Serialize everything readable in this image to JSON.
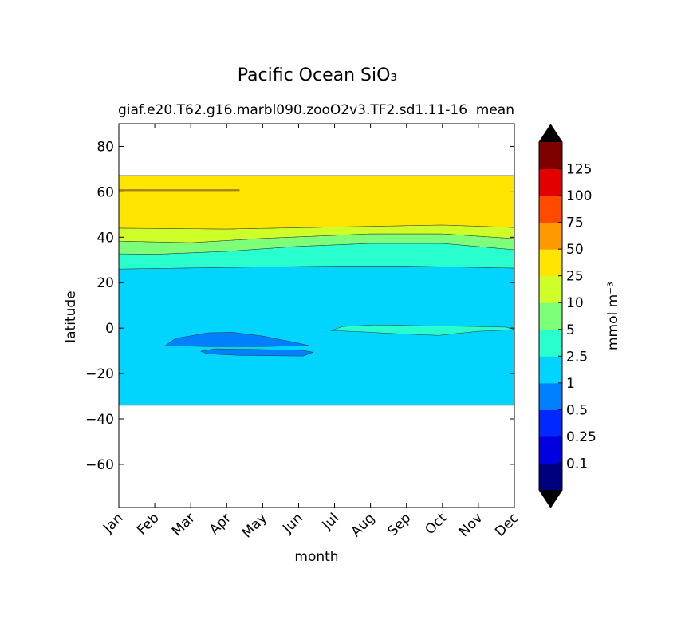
{
  "chart_data": {
    "type": "contourf",
    "title": "Pacific Ocean SiO₃",
    "subtitle_left": "giaf.e20.T62.g16.marbl090.zooO2v3.TF2.sd1.11-16",
    "subtitle_right": "mean",
    "x_label": "month",
    "y_label": "latitude",
    "categories": [
      "Jan",
      "Feb",
      "Mar",
      "Apr",
      "May",
      "Jun",
      "Jul",
      "Aug",
      "Sep",
      "Oct",
      "Nov",
      "Dec"
    ],
    "ylim": [
      -79,
      90
    ],
    "yticks": [
      {
        "value": -60,
        "label": "−60"
      },
      {
        "value": -40,
        "label": "−40"
      },
      {
        "value": -20,
        "label": "−20"
      },
      0,
      20,
      40,
      60,
      80
    ],
    "colorbar": {
      "label": "mmol m⁻³",
      "levels": [
        0.1,
        0.25,
        0.5,
        1,
        2.5,
        5,
        10,
        25,
        50,
        75,
        100,
        125
      ],
      "colors": [
        "#00007f",
        "#0000e0",
        "#0028ff",
        "#0080ff",
        "#00d4ff",
        "#29ffce",
        "#7dff7a",
        "#ceff29",
        "#ffe500",
        "#ff9900",
        "#ff4a00",
        "#e30000",
        "#800000"
      ],
      "extend_color": "#000000"
    },
    "regions": [
      {
        "range": [
          1,
          2.5
        ],
        "x": [
          0,
          11,
          11,
          8,
          6,
          3,
          0
        ],
        "y": [
          -34,
          -34,
          26.4,
          27.3,
          27.3,
          26.7,
          26
        ]
      },
      {
        "range": [
          2.5,
          5
        ],
        "x": [
          0,
          3,
          6,
          8,
          11,
          11,
          9,
          7,
          5,
          3,
          1,
          0
        ],
        "y": [
          26,
          26.7,
          27.3,
          27.3,
          26.4,
          34.5,
          37.3,
          37.3,
          36,
          33.8,
          32.5,
          32.7
        ]
      },
      {
        "range": [
          5,
          10
        ],
        "x": [
          0,
          1,
          3,
          5,
          7,
          9,
          11,
          11,
          9,
          7,
          4,
          2,
          0
        ],
        "y": [
          32.7,
          32.5,
          33.8,
          36,
          37.3,
          37.3,
          34.5,
          39.4,
          41.5,
          41.5,
          39.5,
          37.6,
          38.3
        ]
      },
      {
        "range": [
          10,
          25
        ],
        "x": [
          0,
          2,
          4,
          7,
          9,
          11,
          11,
          9,
          7,
          3,
          0
        ],
        "y": [
          38.3,
          37.6,
          39.5,
          41.5,
          41.5,
          39.4,
          44.3,
          45.4,
          44.8,
          43.6,
          44
        ]
      },
      {
        "range": [
          25,
          50
        ],
        "x": [
          0,
          3,
          7,
          9,
          11,
          11,
          0
        ],
        "y": [
          44,
          43.6,
          44.8,
          45.4,
          44.3,
          67.2,
          67.2
        ]
      },
      {
        "range": [
          50,
          75
        ],
        "x": [
          0,
          3.35,
          3.35,
          0
        ],
        "y": [
          60.9,
          60.9,
          60.5,
          60.5
        ]
      },
      {
        "range": [
          0.5,
          1
        ],
        "x": [
          1.29,
          1.57,
          2.46,
          3.13,
          4.01,
          4.9,
          5.3,
          4.01,
          2.46
        ],
        "y": [
          -7.7,
          -4.6,
          -2.1,
          -1.8,
          -3.5,
          -6.3,
          -7.7,
          -8.1,
          -8.1
        ]
      },
      {
        "range": [
          0.5,
          1
        ],
        "x": [
          2.28,
          2.68,
          4.24,
          5.12,
          5.41,
          5.12,
          3.35,
          2.46
        ],
        "y": [
          -10.2,
          -9.1,
          -9.5,
          -9.8,
          -10.6,
          -12.3,
          -12,
          -11.3
        ]
      },
      {
        "range": [
          2.5,
          5
        ],
        "x": [
          5.9,
          6.23,
          7.12,
          8.23,
          10,
          10.78,
          11,
          10,
          8.89,
          7.78,
          6.45
        ],
        "y": [
          -1.1,
          0.7,
          1.4,
          1.1,
          0.7,
          0.4,
          -0.7,
          -1.4,
          -3.2,
          -2.5,
          -1.4
        ]
      }
    ]
  }
}
